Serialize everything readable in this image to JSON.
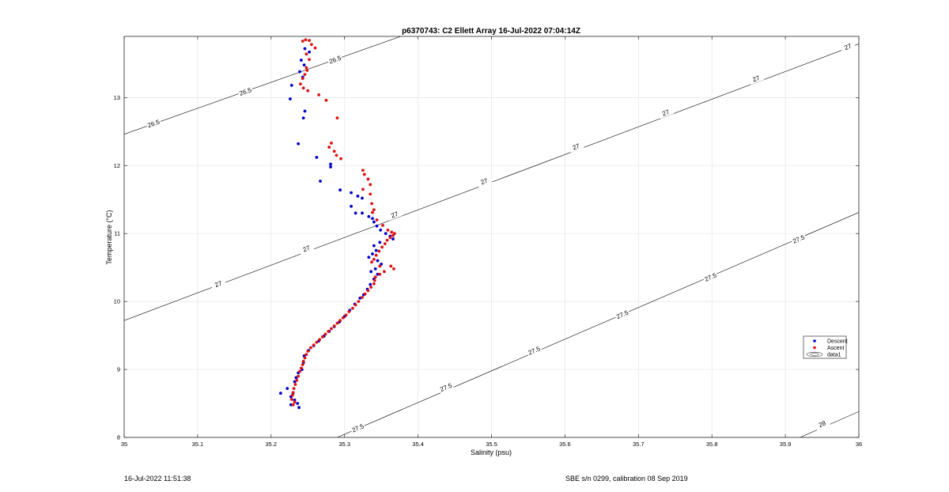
{
  "footer": {
    "left": "16-Jul-2022 11:51:38",
    "right": "SBE s/n 0299, calibration 08 Sep 2019"
  },
  "chart_data": {
    "type": "scatter",
    "title": "p6370743: C2 Ellett Array 16-Jul-2022 07:04:14Z",
    "xlabel": "Salinity (psu)",
    "ylabel": "Temperature (°C)",
    "xlim": [
      35,
      36
    ],
    "ylim": [
      8,
      13.9
    ],
    "xticks": [
      "35",
      "35.1",
      "35.2",
      "35.3",
      "35.4",
      "35.5",
      "35.6",
      "35.7",
      "35.8",
      "35.9",
      "36"
    ],
    "yticks": [
      "8",
      "9",
      "10",
      "11",
      "12",
      "13"
    ],
    "grid": true,
    "legend": {
      "position": "right",
      "entries": [
        "Descent",
        "Ascent",
        "data1"
      ]
    },
    "colors": {
      "descent": "#0000cc",
      "ascent": "#dd1111",
      "contour": "#000000",
      "grid": "#e6e6e6"
    },
    "contours": [
      {
        "label": "26.5",
        "points": [
          [
            35.0,
            12.46
          ],
          [
            35.4,
            13.99
          ]
        ]
      },
      {
        "label": "27",
        "points": [
          [
            35.0,
            9.72
          ],
          [
            36.0,
            13.79
          ]
        ]
      },
      {
        "label": "27.5",
        "points": [
          [
            35.29,
            8.0
          ],
          [
            36.0,
            11.31
          ]
        ]
      },
      {
        "label": "28",
        "points": [
          [
            35.92,
            8.0
          ],
          [
            36.0,
            8.38
          ]
        ]
      }
    ],
    "contour_labels": [
      {
        "text": "26.5",
        "s": 35.04,
        "t": 12.62
      },
      {
        "text": "26.5",
        "s": 35.165,
        "t": 13.09
      },
      {
        "text": "26.5",
        "s": 35.287,
        "t": 13.56
      },
      {
        "text": "27",
        "s": 35.128,
        "t": 10.26
      },
      {
        "text": "27",
        "s": 35.248,
        "t": 10.78
      },
      {
        "text": "27",
        "s": 35.368,
        "t": 11.28
      },
      {
        "text": "27",
        "s": 35.49,
        "t": 11.77
      },
      {
        "text": "27",
        "s": 35.615,
        "t": 12.28
      },
      {
        "text": "27",
        "s": 35.737,
        "t": 12.78
      },
      {
        "text": "27",
        "s": 35.86,
        "t": 13.28
      },
      {
        "text": "27",
        "s": 35.985,
        "t": 13.75
      },
      {
        "text": "27.5",
        "s": 35.318,
        "t": 8.14
      },
      {
        "text": "27.5",
        "s": 35.438,
        "t": 8.74
      },
      {
        "text": "27.5",
        "s": 35.558,
        "t": 9.28
      },
      {
        "text": "27.5",
        "s": 35.678,
        "t": 9.81
      },
      {
        "text": "27.5",
        "s": 35.798,
        "t": 10.36
      },
      {
        "text": "27.5",
        "s": 35.918,
        "t": 10.92
      },
      {
        "text": "28",
        "s": 35.95,
        "t": 8.2
      }
    ],
    "series": [
      {
        "name": "Descent",
        "points": [
          [
            35.246,
            13.72
          ],
          [
            35.252,
            13.67
          ],
          [
            35.241,
            13.55
          ],
          [
            35.245,
            13.48
          ],
          [
            35.239,
            13.38
          ],
          [
            35.243,
            13.3
          ],
          [
            35.228,
            13.18
          ],
          [
            35.226,
            12.98
          ],
          [
            35.246,
            12.8
          ],
          [
            35.244,
            12.7
          ],
          [
            35.237,
            12.32
          ],
          [
            35.262,
            12.12
          ],
          [
            35.281,
            12.02
          ],
          [
            35.281,
            11.98
          ],
          [
            35.267,
            11.77
          ],
          [
            35.294,
            11.64
          ],
          [
            35.309,
            11.6
          ],
          [
            35.318,
            11.55
          ],
          [
            35.309,
            11.4
          ],
          [
            35.324,
            11.52
          ],
          [
            35.315,
            11.3
          ],
          [
            35.324,
            11.3
          ],
          [
            35.333,
            11.25
          ],
          [
            35.338,
            11.22
          ],
          [
            35.34,
            11.17
          ],
          [
            35.344,
            11.11
          ],
          [
            35.349,
            11.05
          ],
          [
            35.356,
            11.0
          ],
          [
            35.362,
            10.96
          ],
          [
            35.366,
            10.92
          ],
          [
            35.348,
            10.87
          ],
          [
            35.34,
            10.82
          ],
          [
            35.343,
            10.75
          ],
          [
            35.338,
            10.7
          ],
          [
            35.333,
            10.65
          ],
          [
            35.345,
            10.6
          ],
          [
            35.35,
            10.55
          ],
          [
            35.342,
            10.48
          ],
          [
            35.336,
            10.44
          ],
          [
            35.345,
            10.4
          ],
          [
            35.34,
            10.33
          ],
          [
            35.335,
            10.25
          ],
          [
            35.331,
            10.18
          ],
          [
            35.326,
            10.1
          ],
          [
            35.321,
            10.05
          ],
          [
            35.314,
            9.96
          ],
          [
            35.307,
            9.87
          ],
          [
            35.3,
            9.78
          ],
          [
            35.293,
            9.7
          ],
          [
            35.286,
            9.63
          ],
          [
            35.279,
            9.56
          ],
          [
            35.272,
            9.49
          ],
          [
            35.265,
            9.42
          ],
          [
            35.258,
            9.35
          ],
          [
            35.251,
            9.28
          ],
          [
            35.245,
            9.2
          ],
          [
            35.244,
            9.1
          ],
          [
            35.242,
            9.0
          ],
          [
            35.237,
            8.95
          ],
          [
            35.234,
            8.88
          ],
          [
            35.232,
            8.82
          ],
          [
            35.222,
            8.72
          ],
          [
            35.23,
            8.65
          ],
          [
            35.227,
            8.6
          ],
          [
            35.213,
            8.65
          ],
          [
            35.232,
            8.55
          ],
          [
            35.227,
            8.48
          ],
          [
            35.236,
            8.5
          ],
          [
            35.238,
            8.44
          ]
        ]
      },
      {
        "name": "Ascent",
        "points": [
          [
            35.243,
            13.83
          ],
          [
            35.247,
            13.85
          ],
          [
            35.252,
            13.84
          ],
          [
            35.255,
            13.78
          ],
          [
            35.26,
            13.73
          ],
          [
            35.248,
            13.64
          ],
          [
            35.252,
            13.56
          ],
          [
            35.248,
            13.44
          ],
          [
            35.249,
            13.4
          ],
          [
            35.246,
            13.34
          ],
          [
            35.243,
            13.28
          ],
          [
            35.24,
            13.2
          ],
          [
            35.244,
            13.14
          ],
          [
            35.25,
            13.1
          ],
          [
            35.265,
            13.04
          ],
          [
            35.275,
            12.96
          ],
          [
            35.29,
            12.7
          ],
          [
            35.282,
            12.33
          ],
          [
            35.279,
            12.27
          ],
          [
            35.286,
            12.21
          ],
          [
            35.289,
            12.15
          ],
          [
            35.295,
            12.1
          ],
          [
            35.325,
            11.93
          ],
          [
            35.327,
            11.87
          ],
          [
            35.332,
            11.8
          ],
          [
            35.335,
            11.72
          ],
          [
            35.325,
            11.65
          ],
          [
            35.335,
            11.58
          ],
          [
            35.337,
            11.44
          ],
          [
            35.34,
            11.35
          ],
          [
            35.338,
            11.31
          ],
          [
            35.344,
            11.2
          ],
          [
            35.352,
            11.12
          ],
          [
            35.359,
            11.05
          ],
          [
            35.364,
            11.02
          ],
          [
            35.368,
            11.0
          ],
          [
            35.366,
            10.97
          ],
          [
            35.362,
            10.94
          ],
          [
            35.358,
            10.9
          ],
          [
            35.355,
            10.85
          ],
          [
            35.351,
            10.8
          ],
          [
            35.347,
            10.74
          ],
          [
            35.343,
            10.68
          ],
          [
            35.34,
            10.62
          ],
          [
            35.337,
            10.58
          ],
          [
            35.348,
            10.52
          ],
          [
            35.363,
            10.52
          ],
          [
            35.367,
            10.48
          ],
          [
            35.354,
            10.44
          ],
          [
            35.348,
            10.4
          ],
          [
            35.342,
            10.36
          ],
          [
            35.341,
            10.31
          ],
          [
            35.34,
            10.26
          ],
          [
            35.336,
            10.21
          ],
          [
            35.332,
            10.16
          ],
          [
            35.328,
            10.11
          ],
          [
            35.324,
            10.06
          ],
          [
            35.319,
            10.0
          ],
          [
            35.315,
            9.95
          ],
          [
            35.311,
            9.9
          ],
          [
            35.306,
            9.85
          ],
          [
            35.302,
            9.8
          ],
          [
            35.298,
            9.76
          ],
          [
            35.294,
            9.72
          ],
          [
            35.29,
            9.68
          ],
          [
            35.286,
            9.64
          ],
          [
            35.282,
            9.6
          ],
          [
            35.278,
            9.56
          ],
          [
            35.274,
            9.52
          ],
          [
            35.27,
            9.48
          ],
          [
            35.266,
            9.44
          ],
          [
            35.262,
            9.4
          ],
          [
            35.258,
            9.36
          ],
          [
            35.254,
            9.32
          ],
          [
            35.25,
            9.27
          ],
          [
            35.248,
            9.22
          ],
          [
            35.246,
            9.17
          ],
          [
            35.244,
            9.12
          ],
          [
            35.243,
            9.07
          ],
          [
            35.241,
            9.02
          ],
          [
            35.239,
            8.97
          ],
          [
            35.237,
            8.9
          ],
          [
            35.235,
            8.84
          ],
          [
            35.233,
            8.78
          ],
          [
            35.231,
            8.72
          ],
          [
            35.23,
            8.66
          ],
          [
            35.229,
            8.62
          ],
          [
            35.228,
            8.56
          ],
          [
            35.232,
            8.52
          ],
          [
            35.23,
            8.48
          ]
        ]
      }
    ]
  }
}
